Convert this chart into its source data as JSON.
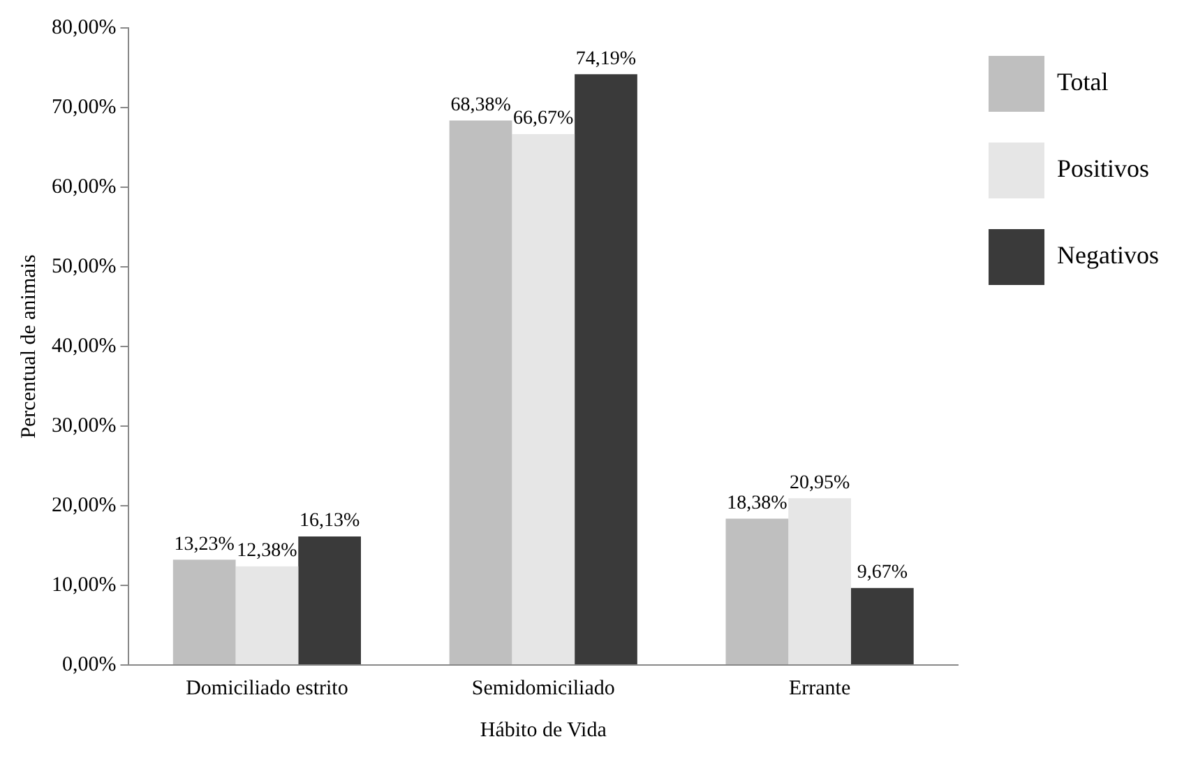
{
  "chart_data": {
    "type": "bar",
    "xlabel": "Hábito de Vida",
    "ylabel": "Percentual de animais",
    "categories": [
      "Domiciliado estrito",
      "Semidomiciliado",
      "Errante"
    ],
    "series": [
      {
        "name": "Total",
        "color": "#bfbfbf",
        "values": [
          13.23,
          68.38,
          18.38
        ],
        "value_labels": [
          "13,23%",
          "68,38%",
          "18,38%"
        ]
      },
      {
        "name": "Positivos",
        "color": "#e6e6e6",
        "values": [
          12.38,
          66.67,
          20.95
        ],
        "value_labels": [
          "12,38%",
          "66,67%",
          "20,95%"
        ]
      },
      {
        "name": "Negativos",
        "color": "#3a3a3a",
        "values": [
          16.13,
          74.19,
          9.67
        ],
        "value_labels": [
          "16,13%",
          "74,19%",
          "9,67%"
        ]
      }
    ],
    "ylim": [
      0,
      80
    ],
    "yticks": [
      {
        "value": 0,
        "label": "0,00%"
      },
      {
        "value": 10,
        "label": "10,00%"
      },
      {
        "value": 20,
        "label": "20,00%"
      },
      {
        "value": 30,
        "label": "30,00%"
      },
      {
        "value": 40,
        "label": "40,00%"
      },
      {
        "value": 50,
        "label": "50,00%"
      },
      {
        "value": 60,
        "label": "60,00%"
      },
      {
        "value": 70,
        "label": "70,00%"
      },
      {
        "value": 80,
        "label": "80,00%"
      }
    ],
    "grid": false,
    "legend": "right"
  }
}
